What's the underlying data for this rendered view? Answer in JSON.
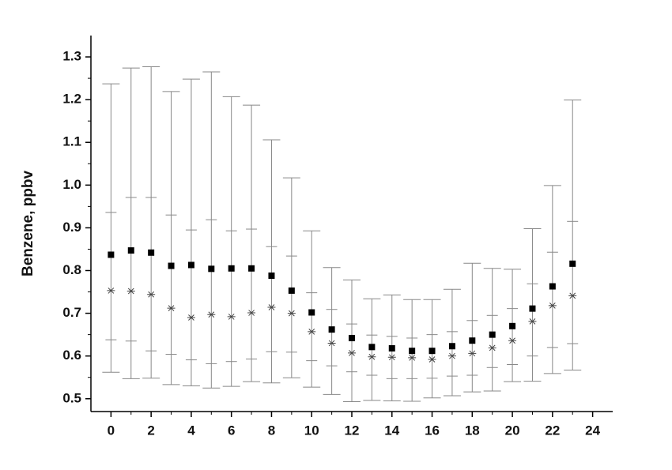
{
  "chart_data": {
    "type": "box",
    "y_label": "Benzene, ppbv",
    "x": [
      0,
      1,
      2,
      3,
      4,
      5,
      6,
      7,
      8,
      9,
      10,
      11,
      12,
      13,
      14,
      15,
      16,
      17,
      18,
      19,
      20,
      21,
      22,
      23
    ],
    "whisker_high": [
      1.237,
      1.274,
      1.277,
      1.219,
      1.248,
      1.265,
      1.207,
      1.187,
      1.106,
      1.017,
      0.893,
      0.807,
      0.778,
      0.734,
      0.743,
      0.732,
      0.732,
      0.756,
      0.817,
      0.805,
      0.803,
      0.898,
      0.999,
      1.199
    ],
    "q3": [
      0.936,
      0.971,
      0.971,
      0.93,
      0.895,
      0.919,
      0.893,
      0.897,
      0.856,
      0.834,
      0.748,
      0.709,
      0.675,
      0.649,
      0.646,
      0.642,
      0.65,
      0.657,
      0.683,
      0.695,
      0.711,
      0.769,
      0.843,
      0.915
    ],
    "mean": [
      0.837,
      0.847,
      0.842,
      0.811,
      0.813,
      0.804,
      0.805,
      0.805,
      0.788,
      0.753,
      0.702,
      0.662,
      0.642,
      0.621,
      0.618,
      0.612,
      0.612,
      0.623,
      0.636,
      0.65,
      0.67,
      0.711,
      0.763,
      0.816
    ],
    "median": [
      0.753,
      0.752,
      0.744,
      0.712,
      0.69,
      0.697,
      0.692,
      0.701,
      0.714,
      0.7,
      0.657,
      0.63,
      0.607,
      0.598,
      0.597,
      0.596,
      0.592,
      0.6,
      0.606,
      0.619,
      0.636,
      0.681,
      0.718,
      0.741
    ],
    "q1": [
      0.638,
      0.635,
      0.612,
      0.604,
      0.591,
      0.582,
      0.587,
      0.593,
      0.61,
      0.609,
      0.589,
      0.577,
      0.563,
      0.555,
      0.547,
      0.547,
      0.548,
      0.553,
      0.555,
      0.573,
      0.58,
      0.6,
      0.62,
      0.629
    ],
    "whisker_low": [
      0.562,
      0.547,
      0.548,
      0.533,
      0.53,
      0.525,
      0.529,
      0.54,
      0.537,
      0.549,
      0.527,
      0.51,
      0.493,
      0.496,
      0.495,
      0.494,
      0.502,
      0.507,
      0.516,
      0.518,
      0.54,
      0.541,
      0.559,
      0.567
    ],
    "whisker_color": "#888888",
    "mean_color": "#000000",
    "median_color": "#444444",
    "xlim": [
      -1,
      25
    ],
    "xticks": [
      0,
      2,
      4,
      6,
      8,
      10,
      12,
      14,
      16,
      18,
      20,
      22,
      24
    ],
    "xminorticks": [
      1,
      3,
      5,
      7,
      9,
      11,
      13,
      15,
      17,
      19,
      21,
      23
    ],
    "ylim": [
      0.47,
      1.35
    ],
    "yticks": [
      0.5,
      0.6,
      0.7,
      0.8,
      0.9,
      {
        "value": 1.0,
        "label": "1.0"
      },
      1.1,
      1.2,
      1.3
    ],
    "yminorticks": [
      0.55,
      0.65,
      0.75,
      0.85,
      0.95,
      1.05,
      1.15,
      1.25
    ]
  }
}
